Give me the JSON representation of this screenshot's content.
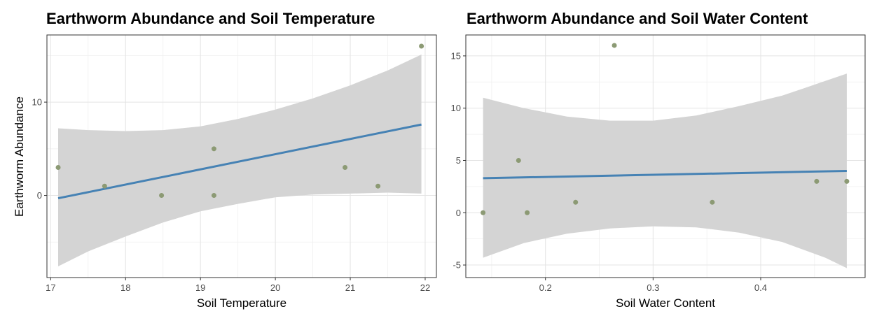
{
  "chart_data": [
    {
      "type": "scatter",
      "title": "Earthworm Abundance and Soil Temperature",
      "xlabel": "Soil Temperature",
      "ylabel": "Earthworm Abundance",
      "xlim": [
        16.95,
        22.15
      ],
      "ylim": [
        -8.8,
        17.2
      ],
      "xticks": [
        17,
        18,
        19,
        20,
        21,
        22
      ],
      "yticks": [
        0,
        10
      ],
      "grid": true,
      "points": [
        {
          "x": 17.1,
          "y": 3
        },
        {
          "x": 17.72,
          "y": 1
        },
        {
          "x": 18.48,
          "y": 0
        },
        {
          "x": 19.18,
          "y": 5
        },
        {
          "x": 19.18,
          "y": 0
        },
        {
          "x": 20.93,
          "y": 3
        },
        {
          "x": 21.37,
          "y": 1
        },
        {
          "x": 21.95,
          "y": 16
        }
      ],
      "fit_line": [
        {
          "x": 17.1,
          "y": -0.3
        },
        {
          "x": 21.95,
          "y": 7.6
        }
      ],
      "confidence_band": {
        "x": [
          17.1,
          17.5,
          18.0,
          18.5,
          19.0,
          19.5,
          20.0,
          20.5,
          21.0,
          21.5,
          21.95
        ],
        "upper": [
          7.2,
          7.0,
          6.9,
          7.0,
          7.4,
          8.2,
          9.2,
          10.4,
          11.8,
          13.4,
          15.1
        ],
        "lower": [
          -7.6,
          -6.0,
          -4.4,
          -2.9,
          -1.7,
          -0.9,
          -0.2,
          0.1,
          0.2,
          0.3,
          0.2
        ]
      },
      "colors": {
        "points": "#8c9a74",
        "line": "#4682b4",
        "band": "#d4d4d4"
      }
    },
    {
      "type": "scatter",
      "title": "Earthworm Abundance and Soil Water Content",
      "xlabel": "Soil Water Content",
      "ylabel": "",
      "xlim": [
        0.126,
        0.497
      ],
      "ylim": [
        -6.2,
        17.0
      ],
      "xticks": [
        0.2,
        0.3,
        0.4
      ],
      "xtick_labels": [
        "0.2",
        "0.3",
        "0.4"
      ],
      "yticks": [
        -5,
        0,
        5,
        10,
        15
      ],
      "grid": true,
      "points": [
        {
          "x": 0.142,
          "y": 0
        },
        {
          "x": 0.175,
          "y": 5
        },
        {
          "x": 0.183,
          "y": 0
        },
        {
          "x": 0.228,
          "y": 1
        },
        {
          "x": 0.264,
          "y": 16
        },
        {
          "x": 0.355,
          "y": 1
        },
        {
          "x": 0.452,
          "y": 3
        },
        {
          "x": 0.48,
          "y": 3
        }
      ],
      "fit_line": [
        {
          "x": 0.142,
          "y": 3.3
        },
        {
          "x": 0.48,
          "y": 4.0
        }
      ],
      "confidence_band": {
        "x": [
          0.142,
          0.18,
          0.22,
          0.26,
          0.3,
          0.34,
          0.38,
          0.42,
          0.46,
          0.48
        ],
        "upper": [
          11.0,
          10.0,
          9.2,
          8.8,
          8.8,
          9.3,
          10.2,
          11.2,
          12.6,
          13.3
        ],
        "lower": [
          -4.3,
          -2.9,
          -2.0,
          -1.5,
          -1.3,
          -1.4,
          -1.9,
          -2.8,
          -4.3,
          -5.3
        ]
      },
      "colors": {
        "points": "#8c9a74",
        "line": "#4682b4",
        "band": "#d4d4d4"
      }
    }
  ]
}
